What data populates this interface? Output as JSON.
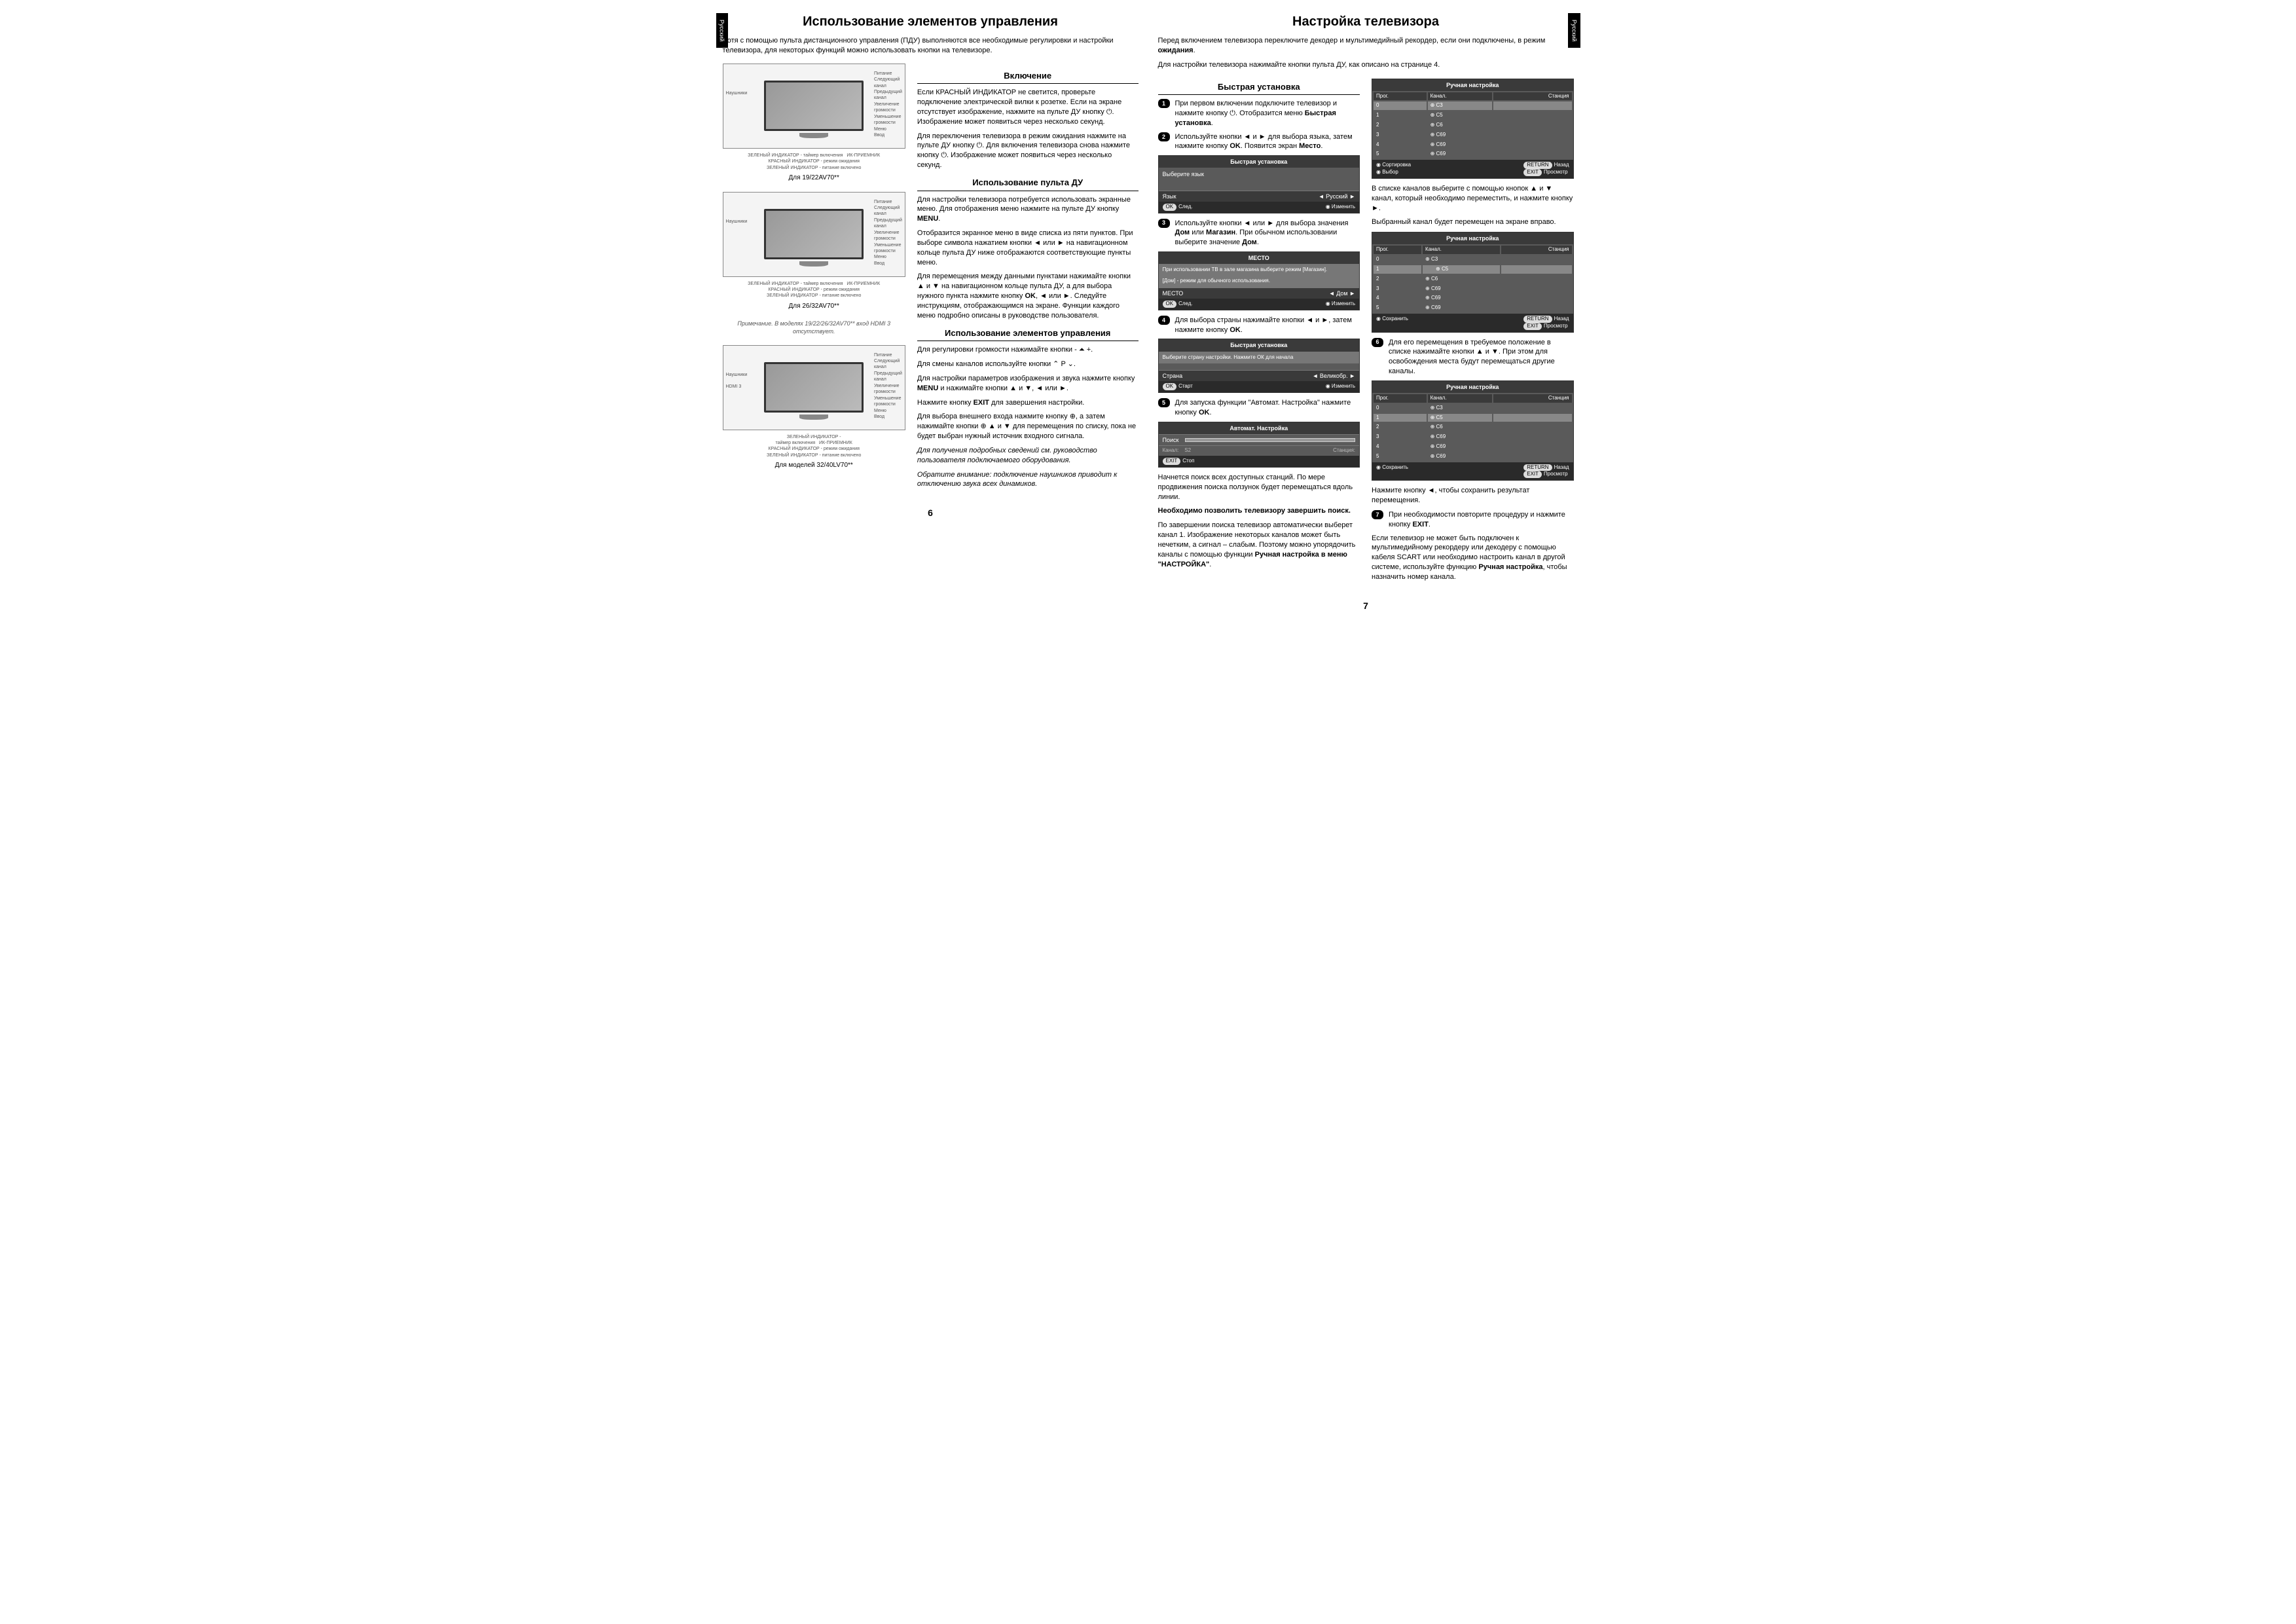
{
  "lang_tab": "Русский",
  "page6": {
    "title": "Использование элементов управления",
    "subtitle": "Хотя с помощью пульта дистанционного управления (ПДУ) выполняются все необходимые регулировки и настройки телевизора, для некоторых функций можно использовать кнопки на телевизоре.",
    "caption1": "Для 19/22AV70**",
    "caption2": "Для 26/32AV70**",
    "caption3": "Для моделей 32/40LV70**",
    "note": "Примечание. В моделях 19/22/26/32AV70** вход HDMI 3 отсутствует.",
    "h_on": "Включение",
    "on_p1": "Если КРАСНЫЙ ИНДИКАТОР не светится, проверьте подключение электрической вилки к розетке. Если на экране отсутствует изображение, нажмите на пульте ДУ кнопку ⏻. Изображение может появиться через несколько секунд.",
    "on_p2": "Для переключения телевизора в режим ожидания нажмите на пульте ДУ кнопку ⏻. Для включения телевизора снова нажмите кнопку ⏻. Изображение может появиться через несколько секунд.",
    "h_remote": "Использование пульта ДУ",
    "rem_p1": "Для настройки телевизора потребуется использовать экранные меню. Для отображения меню нажмите на пульте ДУ кнопку MENU.",
    "rem_p2": "Отобразится экранное меню в виде списка из пяти пунктов. При выборе символа нажатием кнопки ◄ или ► на навигационном кольце пульта ДУ ниже отображаются соответствующие пункты меню.",
    "rem_p3": "Для перемещения между данными пунктами нажимайте кнопки ▲ и ▼ на навигационном кольце пульта ДУ, а для выбора нужного пункта нажмите кнопку OK, ◄ или ►. Следуйте инструкциям, отображающимся на экране. Функции каждого меню подробно описаны в руководстве пользователя.",
    "h_ctrl": "Использование элементов управления",
    "ctrl_p1": "Для регулировки громкости нажимайте кнопки - ⏶ +.",
    "ctrl_p2": "Для смены каналов используйте кнопки ⌃ P ⌄.",
    "ctrl_p3": "Для настройки параметров изображения и звука нажмите кнопку MENU и нажимайте кнопки ▲ и ▼, ◄ или ►.",
    "ctrl_p4": "Нажмите кнопку EXIT для завершения настройки.",
    "ctrl_p5": "Для выбора внешнего входа нажмите кнопку ⊕, а затем нажимайте кнопки ⊕ ▲ и ▼ для перемещения по списку, пока не будет выбран нужный источник входного сигнала.",
    "ctrl_note1": "Для получения подробных сведений см. руководство пользователя подключаемого оборудования.",
    "ctrl_note2": "Обратите внимание: подключение наушников приводит к отключению звука всех динамиков.",
    "pagenum": "6"
  },
  "page7": {
    "title": "Настройка телевизора",
    "subtitle1": "Перед включением телевизора переключите декодер и мультимедийный рекордер, если они подключены, в режим ожидания.",
    "subtitle2": "Для настройки телевизора нажимайте кнопки пульта ДУ, как описано на странице 4.",
    "h_quick": "Быстрая установка",
    "step1": "При первом включении подключите телевизор и нажмите кнопку ⏻. Отобразится меню Быстрая установка.",
    "step2": "Используйте кнопки ◄ и ► для выбора языка, затем нажмите кнопку OK. Появится экран Место.",
    "step3": "Используйте кнопки ◄ или ► для выбора значения Дом или Магазин. При обычном использовании выберите значение Дом.",
    "step4": "Для выбора страны нажимайте кнопки ◄ и ►, затем нажмите кнопку OK.",
    "step5": "Для запуска функции \"Автомат. Настройка\" нажмите кнопку OK.",
    "step6": "Для его перемещения в требуемое положение в списке нажимайте кнопки ▲ и ▼. При этом для освобождения места будут перемещаться другие каналы.",
    "step7": "При необходимости повторите процедуру и нажмите кнопку EXIT.",
    "right_p1": "В списке каналов выберите с помощью кнопок ▲ и ▼ канал, который необходимо переместить, и нажмите кнопку ►.",
    "right_p2": "Выбранный канал будет перемещен на экране вправо.",
    "right_p3": "Нажмите кнопку ◄, чтобы сохранить результат перемещения.",
    "end_p1": "Начнется поиск всех доступных станций. По мере продвижения поиска ползунок будет перемещаться вдоль линии.",
    "end_p2": "Необходимо позволить телевизору завершить поиск.",
    "end_p3": "По завершении поиска телевизор автоматически выберет канал 1. Изображение некоторых каналов может быть нечетким, а сигнал – слабым. Поэтому можно упорядочить каналы с помощью функции Ручная настройка в меню \"НАСТРОЙКА\".",
    "end_p4": "Если телевизор не может быть подключен к мультимедийному рекордеру или декодеру с помощью кабеля SCART или необходимо настроить канал в другой системе, используйте функцию Ручная настройка, чтобы назначить номер канала.",
    "osd_quick_title": "Быстрая установка",
    "osd_choose_lang": "Выберите язык",
    "osd_lang_label": "Язык",
    "osd_lang_val": "Русский",
    "osd_next": "След.",
    "osd_change": "Изменить",
    "osd_place_title": "МЕСТО",
    "osd_place_msg1": "При использовании ТВ в зале магазина выберите режим [Магазин].",
    "osd_place_msg2": "[Дом] - режим для обычного использования.",
    "osd_place_label": "МЕСТО",
    "osd_place_val": "Дом",
    "osd_quick2_msg": "Выберите страну настройки. Нажмите ОК для начала",
    "osd_country_label": "Страна",
    "osd_country_val": "Великобр.",
    "osd_start": "Старт",
    "osd_auto_title": "Автомат. Настройка",
    "osd_search": "Поиск",
    "osd_chan": "Канал:",
    "osd_chan_val": "S2",
    "osd_station": "Станция:",
    "osd_stop": "Стоп",
    "osd_manual_title": "Ручная настройка",
    "osd_cols": {
      "prog": "Прог.",
      "chan": "Канал.",
      "stn": "Станция"
    },
    "osd_rows1": [
      {
        "p": "0",
        "c": "C3",
        "s": "",
        "hl": true
      },
      {
        "p": "1",
        "c": "C5",
        "s": ""
      },
      {
        "p": "2",
        "c": "C6",
        "s": ""
      },
      {
        "p": "3",
        "c": "C69",
        "s": ""
      },
      {
        "p": "4",
        "c": "C69",
        "s": ""
      },
      {
        "p": "5",
        "c": "C69",
        "s": ""
      }
    ],
    "osd_rows2": [
      {
        "p": "0",
        "c": "C3",
        "s": ""
      },
      {
        "p": "1",
        "c": "C5",
        "s": "",
        "hl": true,
        "shift": true
      },
      {
        "p": "2",
        "c": "C6",
        "s": ""
      },
      {
        "p": "3",
        "c": "C69",
        "s": ""
      },
      {
        "p": "4",
        "c": "C69",
        "s": ""
      },
      {
        "p": "5",
        "c": "C69",
        "s": ""
      }
    ],
    "osd_rows3": [
      {
        "p": "0",
        "c": "C3",
        "s": ""
      },
      {
        "p": "1",
        "c": "C5",
        "s": "",
        "hl": true
      },
      {
        "p": "2",
        "c": "C6",
        "s": ""
      },
      {
        "p": "3",
        "c": "C69",
        "s": ""
      },
      {
        "p": "4",
        "c": "C69",
        "s": ""
      },
      {
        "p": "5",
        "c": "C69",
        "s": ""
      }
    ],
    "osd_sort": "Сортировка",
    "osd_save": "Сохранить",
    "osd_select": "Выбор",
    "osd_back": "Назад",
    "osd_view": "Просмотр",
    "osd_ok": "OK",
    "osd_return": "RETURN",
    "osd_exit": "EXIT",
    "pagenum": "7"
  }
}
